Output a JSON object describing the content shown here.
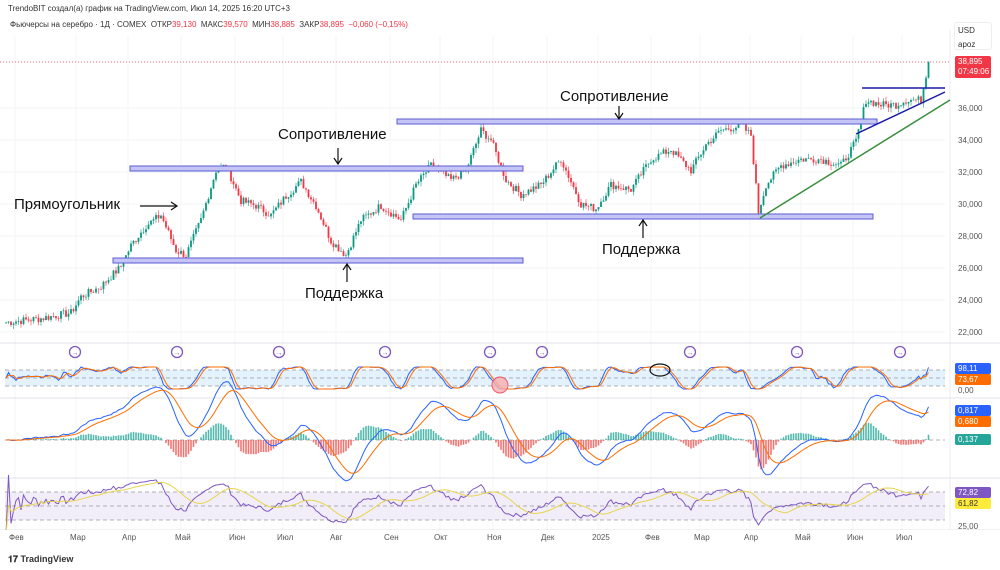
{
  "credit": "TrendoBIT создал(а) график на TradingView.com, Июл 14, 2025 16:20 UTC+3",
  "legend": {
    "symbol": "Фьючерсы на серебро · 1Д · COMEX",
    "open_label": "ОТКР",
    "open": "39,130",
    "high_label": "МАКС",
    "high": "39,570",
    "low_label": "МИН",
    "low": "38,885",
    "close_label": "ЗАКР",
    "close": "38,895",
    "change": "−0,060 (−0,15%)"
  },
  "currency": {
    "code": "USD",
    "unit": "apoz"
  },
  "price_axis": [
    "36,000",
    "34,000",
    "32,000",
    "30,000",
    "28,000",
    "26,000",
    "24,000",
    "22,000"
  ],
  "last_price": {
    "value": "38,895",
    "timer": "07:49:06",
    "color": "#f23645"
  },
  "indicator_labels": {
    "stoch_k": "98,11",
    "stoch_d": "73,67",
    "stoch_zero": "0,00",
    "macd": "0,817",
    "signal": "0,680",
    "hist": "0,137",
    "rsi": "72,82",
    "rsi_ma": "61,82",
    "rsi_low": "25,00"
  },
  "x_axis": [
    "Фев",
    "Мар",
    "Апр",
    "Май",
    "Июн",
    "Июл",
    "Авг",
    "Сен",
    "Окт",
    "Ноя",
    "Дек",
    "2025",
    "Фев",
    "Мар",
    "Апр",
    "Май",
    "Июн",
    "Июл"
  ],
  "annotations": {
    "rect_label": "Прямоугольник",
    "res1": "Сопротивление",
    "sup1": "Поддержка",
    "res2": "Сопротивление",
    "sup2": "Поддержка"
  },
  "logo": "TradingView",
  "colors": {
    "up": "#089981",
    "down": "#f23645",
    "zone": "#5b5bd6"
  },
  "chart_data": {
    "type": "candlestick",
    "price_path": [
      [
        0,
        22600
      ],
      [
        14,
        22850
      ],
      [
        26,
        23200
      ],
      [
        30,
        24200
      ],
      [
        38,
        24850
      ],
      [
        46,
        26100
      ],
      [
        50,
        27400
      ],
      [
        56,
        28650
      ],
      [
        62,
        29300
      ],
      [
        68,
        27100
      ],
      [
        72,
        26800
      ],
      [
        78,
        29000
      ],
      [
        84,
        32100
      ],
      [
        88,
        32400
      ],
      [
        94,
        30200
      ],
      [
        100,
        29900
      ],
      [
        106,
        29300
      ],
      [
        112,
        30500
      ],
      [
        118,
        31400
      ],
      [
        124,
        29900
      ],
      [
        130,
        27700
      ],
      [
        136,
        26800
      ],
      [
        142,
        29000
      ],
      [
        150,
        29900
      ],
      [
        158,
        29000
      ],
      [
        164,
        31200
      ],
      [
        170,
        32400
      ],
      [
        178,
        31500
      ],
      [
        184,
        32100
      ],
      [
        190,
        34600
      ],
      [
        194,
        34000
      ],
      [
        200,
        31500
      ],
      [
        206,
        30600
      ],
      [
        214,
        31200
      ],
      [
        222,
        32800
      ],
      [
        230,
        30000
      ],
      [
        236,
        29700
      ],
      [
        242,
        31200
      ],
      [
        250,
        30900
      ],
      [
        258,
        32800
      ],
      [
        266,
        33400
      ],
      [
        274,
        32100
      ],
      [
        280,
        33700
      ],
      [
        286,
        34600
      ],
      [
        294,
        34900
      ],
      [
        298,
        34300
      ],
      [
        301,
        29500
      ],
      [
        304,
        31200
      ],
      [
        310,
        32400
      ],
      [
        318,
        32800
      ],
      [
        326,
        32800
      ],
      [
        334,
        32400
      ],
      [
        340,
        33900
      ],
      [
        344,
        36500
      ],
      [
        350,
        36200
      ],
      [
        356,
        36200
      ],
      [
        360,
        36500
      ],
      [
        366,
        36500
      ],
      [
        369,
        38900
      ]
    ]
  }
}
